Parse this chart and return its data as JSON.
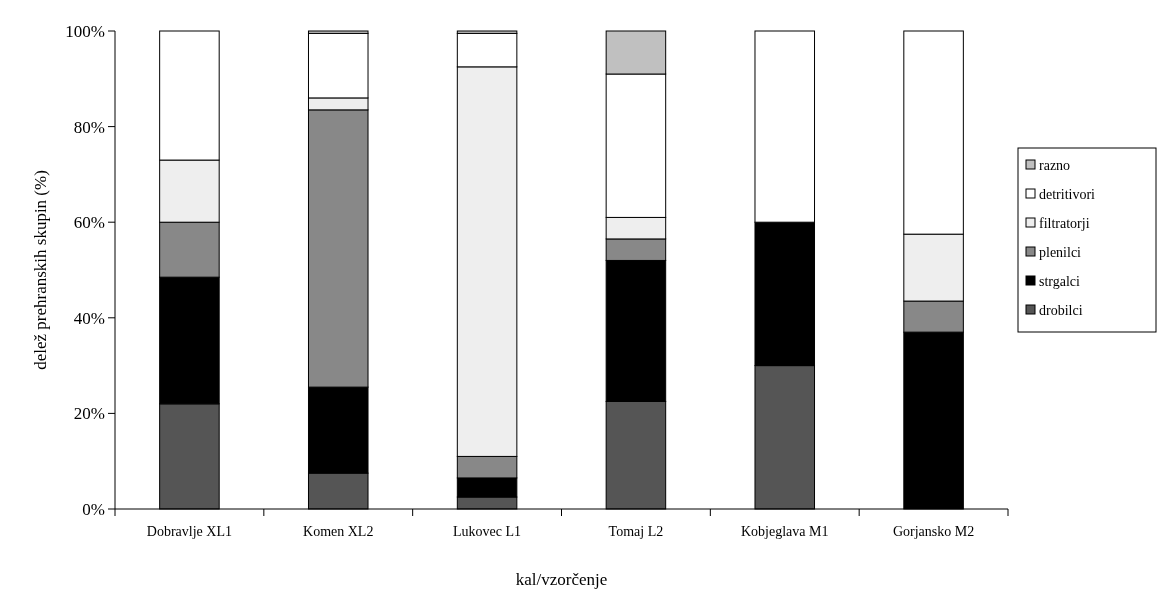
{
  "chart_data": {
    "type": "bar",
    "stacked": true,
    "xlabel": "kal/vzorčenje",
    "ylabel": "delež prehranskih skupin (%)",
    "categories": [
      "Dobravlje XL1",
      "Komen XL2",
      "Lukovec L1",
      "Tomaj L2",
      "Kobjeglava M1",
      "Gorjansko M2"
    ],
    "series": [
      {
        "name": "drobilci",
        "color": "#555555",
        "values": [
          22,
          7.5,
          2.5,
          22.5,
          30,
          0
        ]
      },
      {
        "name": "strgalci",
        "color": "#000000",
        "values": [
          26.5,
          18,
          4,
          29.5,
          30,
          37
        ]
      },
      {
        "name": "plenilci",
        "color": "#888888",
        "values": [
          11.5,
          58,
          4.5,
          4.5,
          0,
          6.5
        ]
      },
      {
        "name": "filtratorji",
        "color": "#eeeeee",
        "values": [
          13,
          2.5,
          81.5,
          4.5,
          0,
          14
        ]
      },
      {
        "name": "detritivori",
        "color": "#ffffff",
        "values": [
          27,
          13.5,
          7,
          30,
          40,
          42.5
        ]
      },
      {
        "name": "razno",
        "color": "#c0c0c0",
        "values": [
          0,
          0.5,
          0.5,
          9,
          0,
          0
        ]
      }
    ],
    "ylim": [
      0,
      100
    ],
    "yticks": [
      {
        "value": 0,
        "label": "0%"
      },
      {
        "value": 20,
        "label": "20%"
      },
      {
        "value": 40,
        "label": "40%"
      },
      {
        "value": 60,
        "label": "60%"
      },
      {
        "value": 80,
        "label": "80%"
      },
      {
        "value": 100,
        "label": "100%"
      }
    ],
    "legend": "right"
  }
}
